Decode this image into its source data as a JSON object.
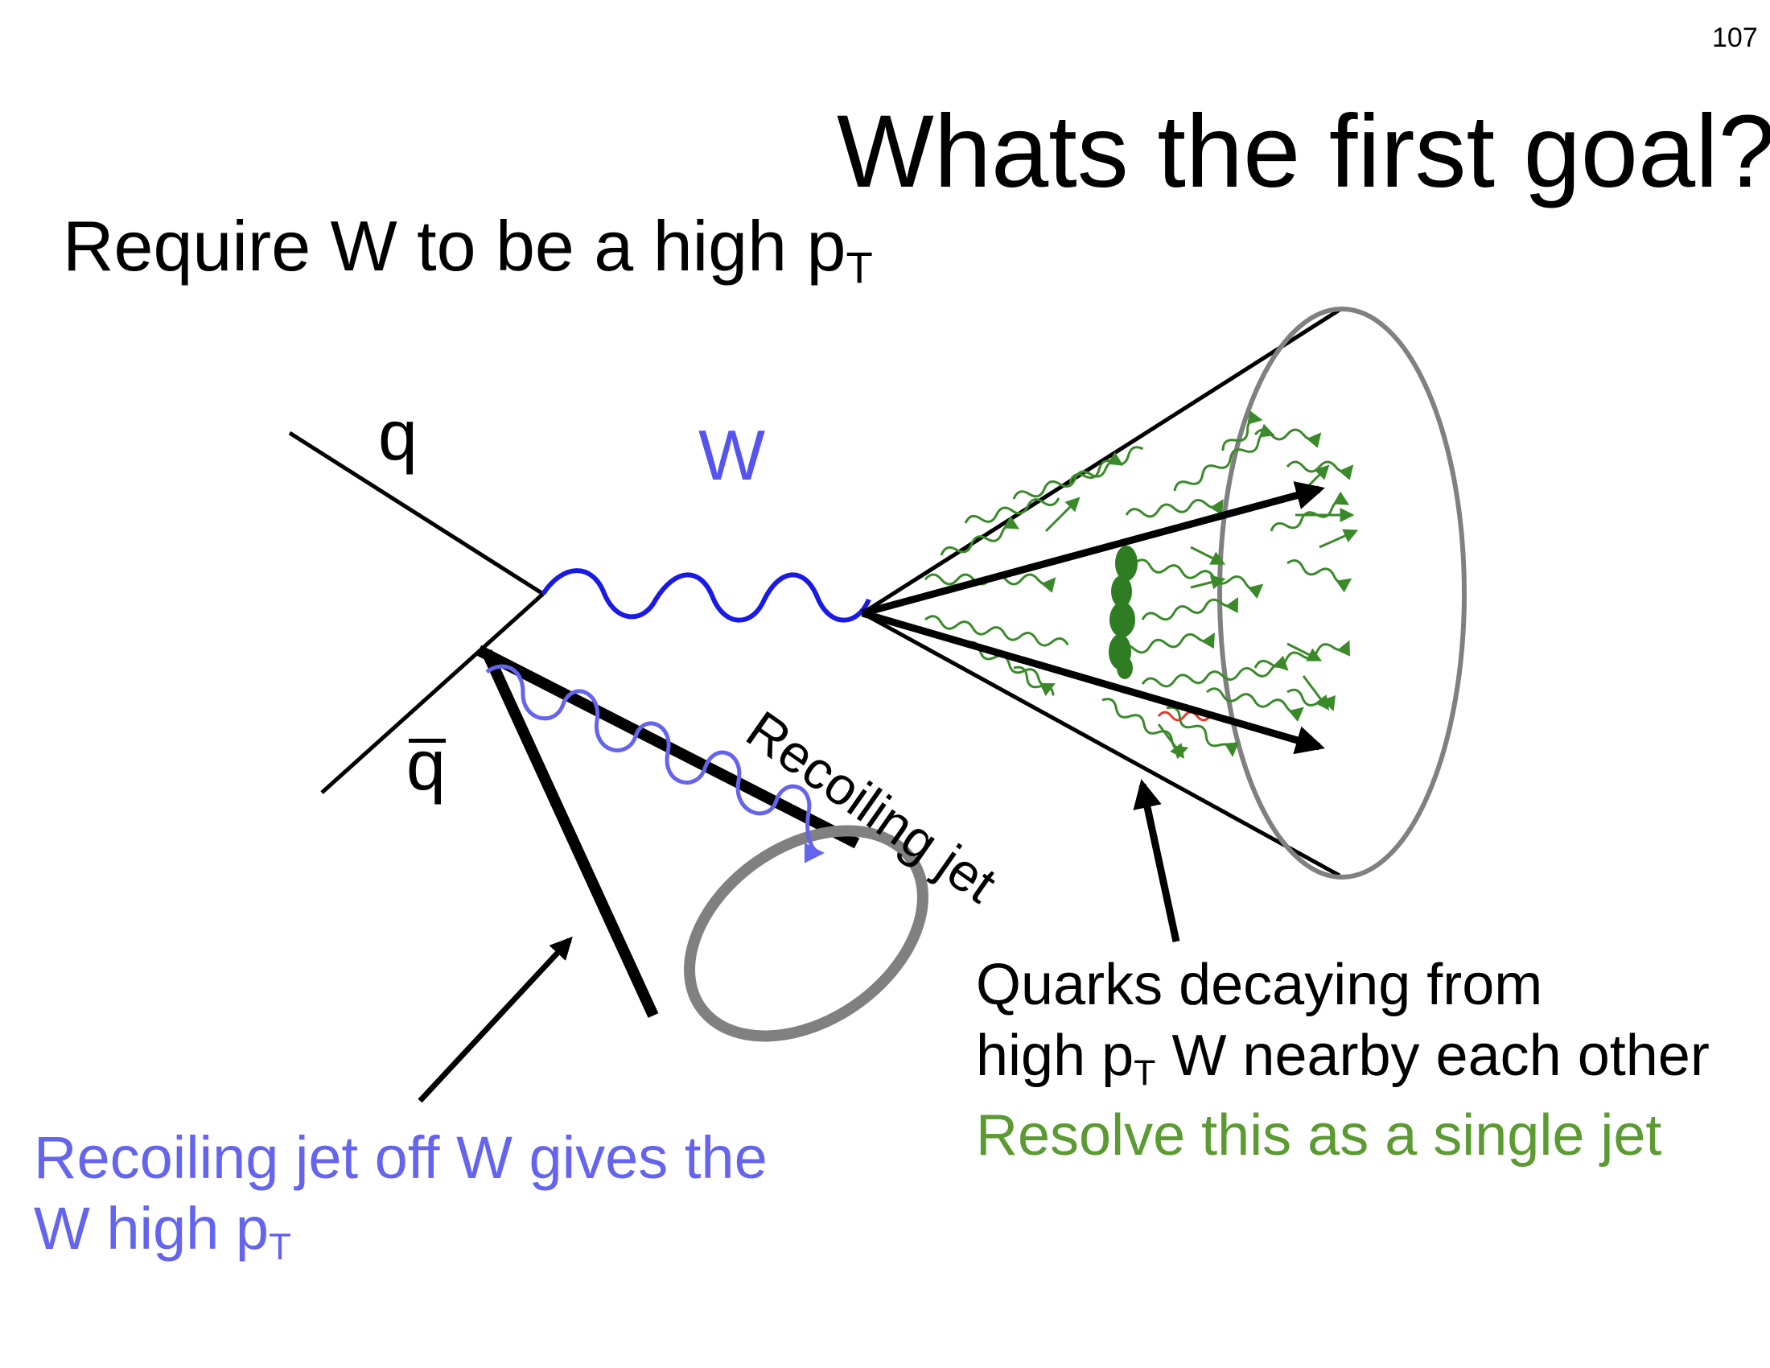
{
  "page_number": "107",
  "title": "Whats the first goal?",
  "subtitle": {
    "text": "Require W to be a high p",
    "sub": "T"
  },
  "labels": {
    "q": "q",
    "qbar": "q",
    "w": "W",
    "recoiling_jet": "Recoiling jet",
    "quarks_line1": "Quarks decaying from",
    "quarks_line2_pre": "high p",
    "quarks_line2_sub": "T",
    "quarks_line2_post": " W nearby each other",
    "resolve": "Resolve this as a single jet",
    "recoil_note_line1": "Recoiling jet off W gives the",
    "recoil_note_line2_pre": "W high p",
    "recoil_note_line2_sub": "T"
  },
  "colors": {
    "w_boson": "#1a1ae6",
    "w_label": "#5555ee",
    "gluon_blue": "#6464ee",
    "shower_green": "#3a8a2a",
    "resolve_green": "#5c9a32",
    "cone_rim": "#808080",
    "red_detail": "#e03a2a"
  }
}
